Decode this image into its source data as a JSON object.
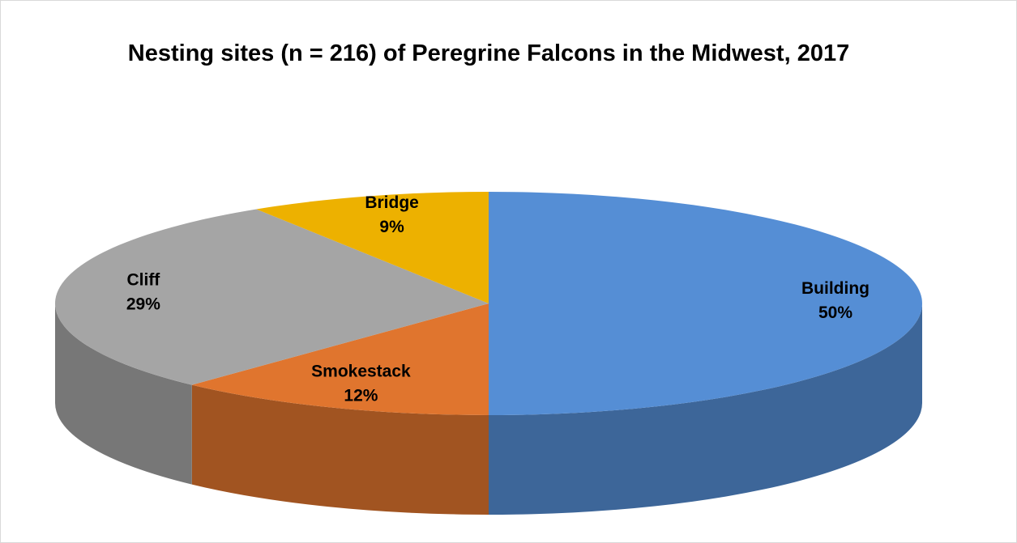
{
  "chart_data": {
    "type": "pie3d",
    "title": "Nesting sites (n = 216) of Peregrine Falcons in the Midwest, 2017",
    "categories": [
      "Building",
      "Smokestack",
      "Cliff",
      "Bridge"
    ],
    "values": [
      50,
      12,
      29,
      9
    ],
    "value_labels": [
      "50%",
      "12%",
      "29%",
      "9%"
    ],
    "colors": [
      "#558ed5",
      "#e0752e",
      "#a5a5a5",
      "#edb100"
    ]
  }
}
